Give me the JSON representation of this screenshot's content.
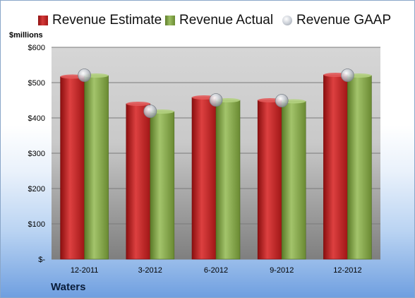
{
  "chart_data": {
    "type": "bar",
    "ylabel": "$millions",
    "company": "Waters",
    "categories": [
      "12-2011",
      "3-2012",
      "6-2012",
      "9-2012",
      "12-2012"
    ],
    "series": [
      {
        "name": "Revenue Estimate",
        "kind": "bar",
        "color": "#c42323",
        "values": [
          517,
          440,
          458,
          450,
          522
        ]
      },
      {
        "name": "Revenue Actual",
        "kind": "bar",
        "color": "#8aab4f",
        "values": [
          520,
          418,
          450,
          447,
          520
        ]
      },
      {
        "name": "Revenue GAAP",
        "kind": "marker",
        "color": "#b9bec6",
        "values": [
          521,
          419,
          451,
          449,
          521
        ]
      }
    ],
    "ylim": [
      0,
      600
    ],
    "yticks": [
      0,
      100,
      200,
      300,
      400,
      500,
      600
    ],
    "ytick_labels": [
      "$-",
      "$100",
      "$200",
      "$300",
      "$400",
      "$500",
      "$600"
    ],
    "grid": true,
    "legend_position": "top"
  }
}
